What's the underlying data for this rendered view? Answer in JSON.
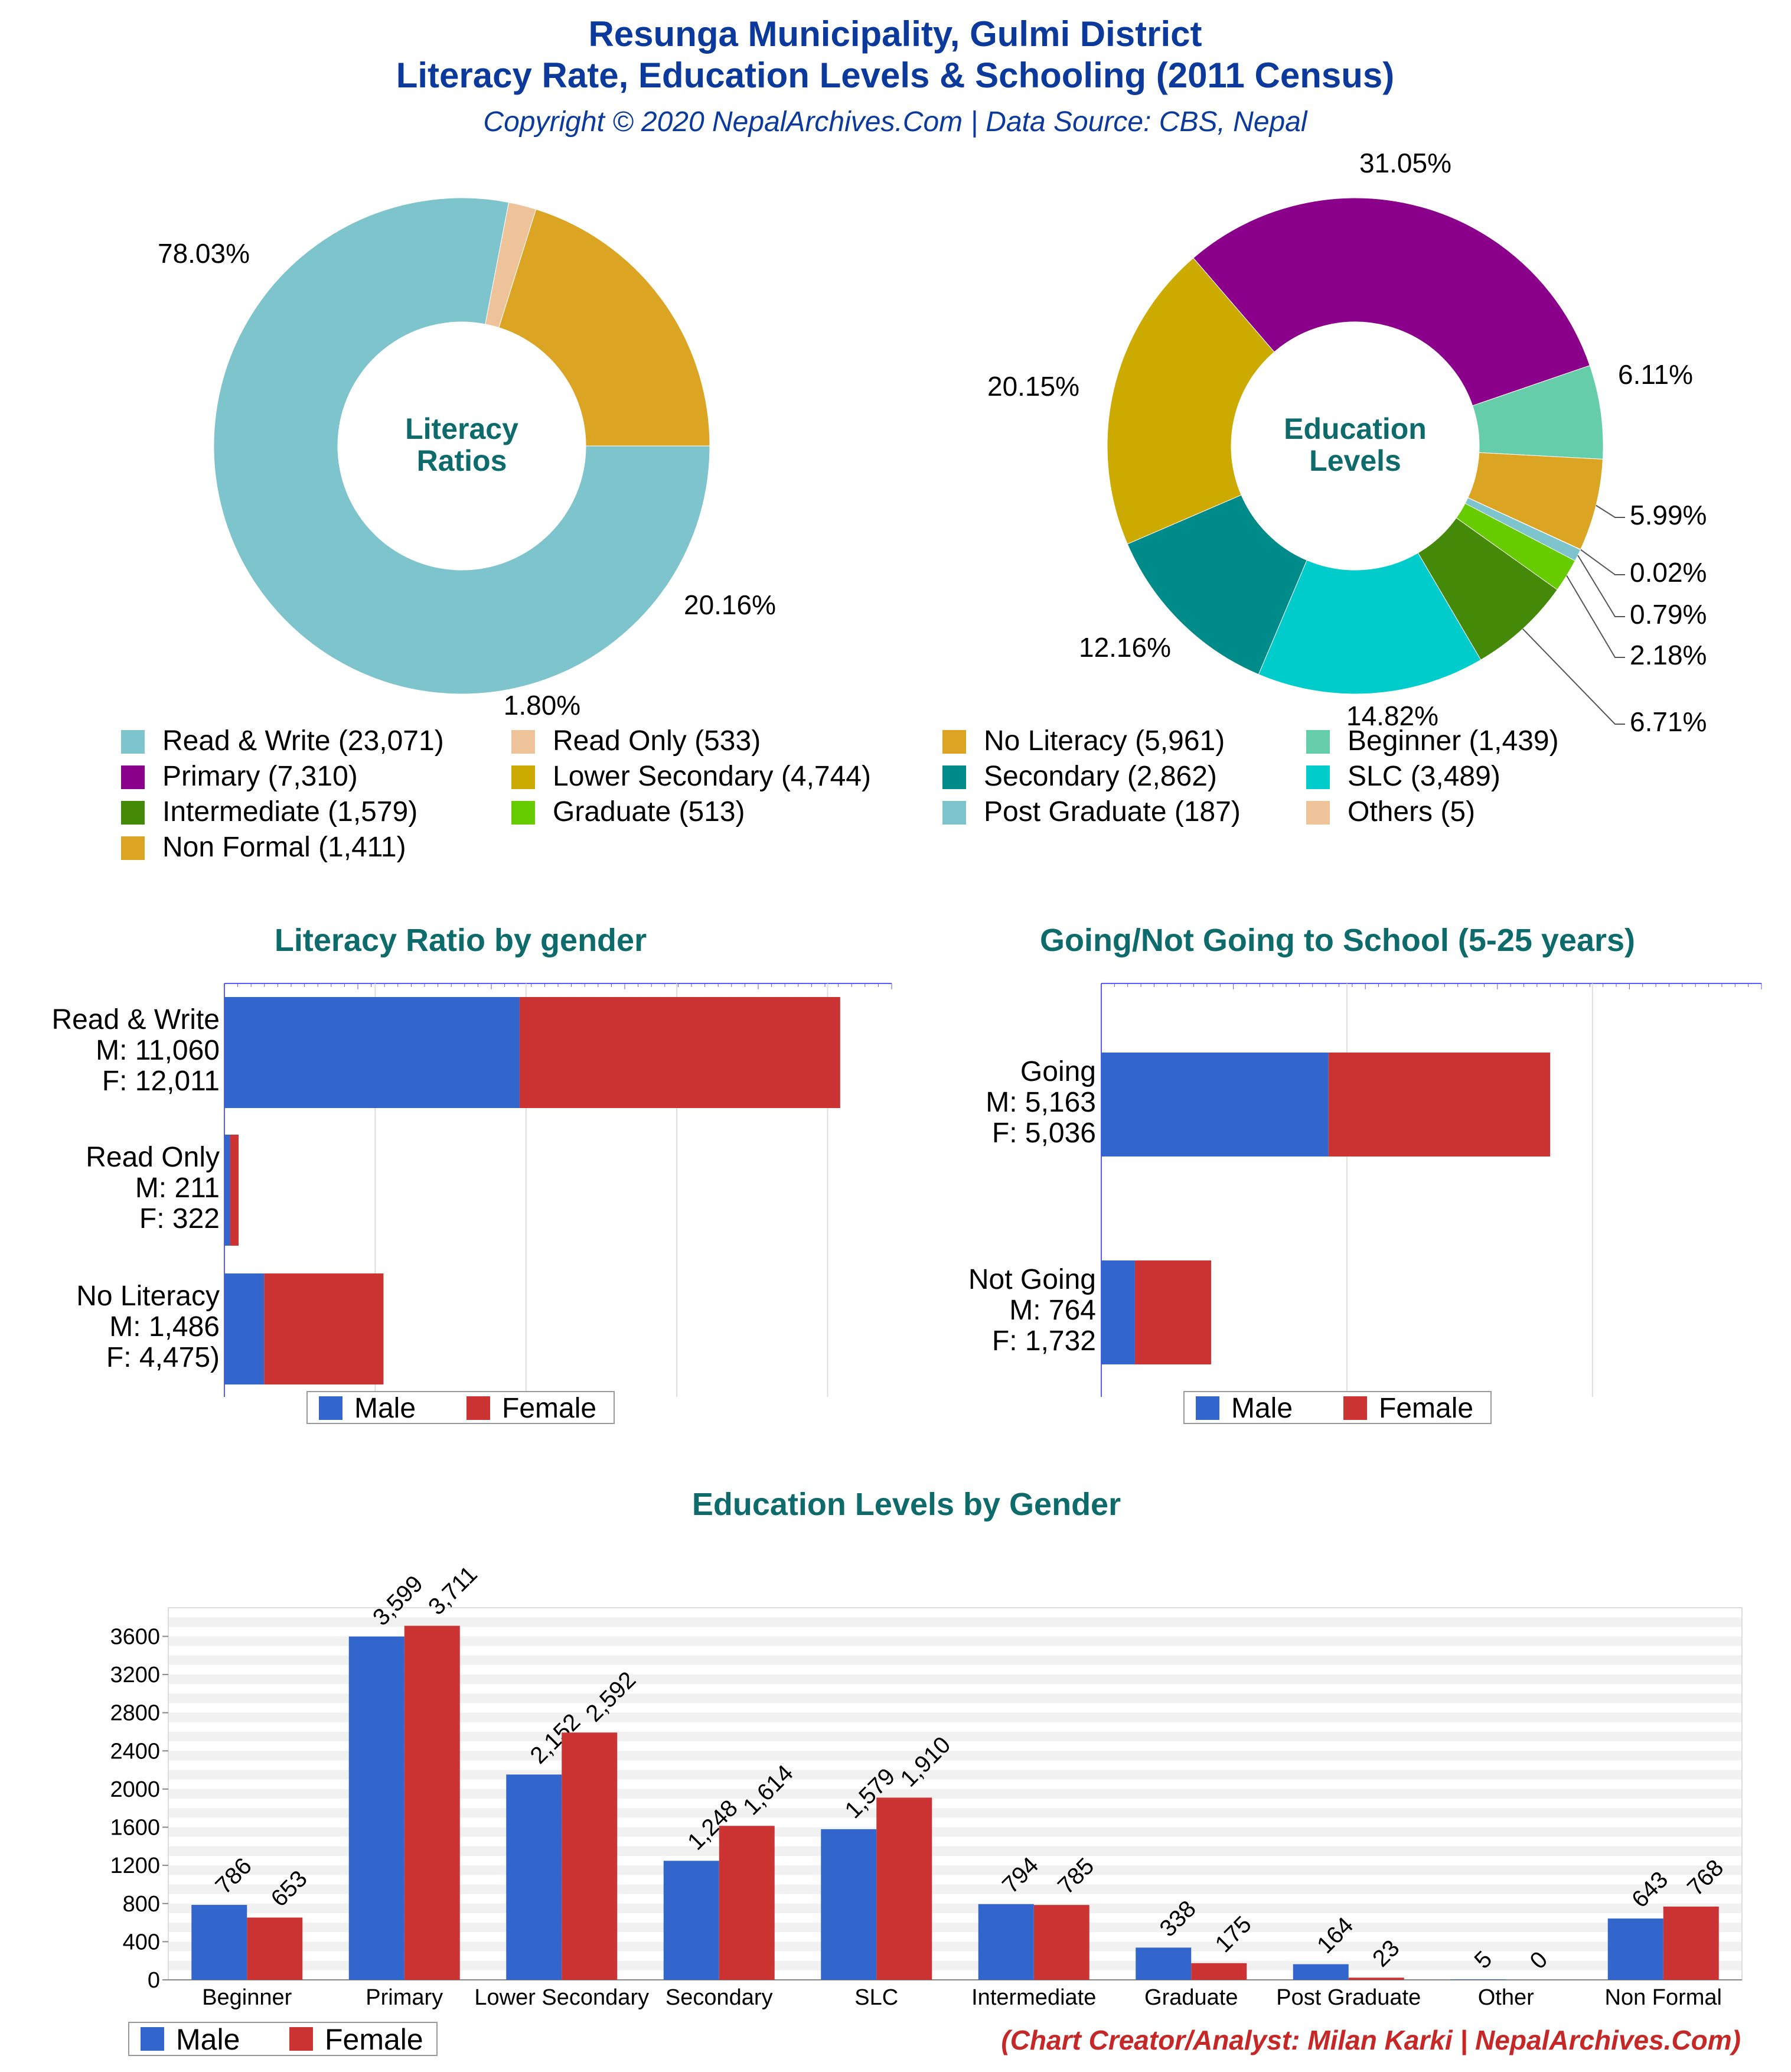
{
  "header": {
    "title_line1": "Resunga Municipality, Gulmi District",
    "title_line2": "Literacy Rate, Education Levels & Schooling (2011 Census)",
    "copyright": "Copyright © 2020 NepalArchives.Com | Data Source: CBS, Nepal",
    "credit": "(Chart Creator/Analyst: Milan Karki | NepalArchives.Com)"
  },
  "colors": {
    "title": "#0b3a9c",
    "chart_title": "#0e6b6b",
    "credit": "#c62828",
    "male": "#3366cc",
    "female": "#cc3333"
  },
  "legend_common": {
    "male": "Male",
    "female": "Female"
  },
  "chart_data": [
    {
      "id": "literacy-donut",
      "type": "pie",
      "center_label": [
        "Literacy",
        "Ratios"
      ],
      "slices": [
        {
          "label": "Read & Write",
          "value": 23071,
          "legend": "Read & Write (23,071)",
          "pct_label": "78.03%",
          "color": "#7ec4cc"
        },
        {
          "label": "Read Only",
          "value": 533,
          "legend": "Read Only (533)",
          "pct_label": "1.80%",
          "color": "#efc39a"
        },
        {
          "label": "No Literacy",
          "value": 5961,
          "legend": "No Literacy (5,961)",
          "pct_label": "20.16%",
          "color": "#dba523"
        }
      ]
    },
    {
      "id": "education-donut",
      "type": "pie",
      "center_label": [
        "Education",
        "Levels"
      ],
      "slices": [
        {
          "label": "Beginner",
          "value": 1439,
          "legend": "Beginner (1,439)",
          "pct_label": "6.11%",
          "color": "#66cdaa"
        },
        {
          "label": "Non Formal",
          "value": 1411,
          "legend": "Non Formal (1,411)",
          "pct_label": "5.99%",
          "color": "#dba523"
        },
        {
          "label": "Others",
          "value": 5,
          "legend": "Others (5)",
          "pct_label": "0.02%",
          "color": "#efc39a"
        },
        {
          "label": "Post Graduate",
          "value": 187,
          "legend": "Post Graduate (187)",
          "pct_label": "0.79%",
          "color": "#7ec4cc"
        },
        {
          "label": "Graduate",
          "value": 513,
          "legend": "Graduate (513)",
          "pct_label": "2.18%",
          "color": "#66cc00"
        },
        {
          "label": "Intermediate",
          "value": 1579,
          "legend": "Intermediate (1,579)",
          "pct_label": "6.71%",
          "color": "#448a08"
        },
        {
          "label": "SLC",
          "value": 3489,
          "legend": "SLC (3,489)",
          "pct_label": "14.82%",
          "color": "#00cccc"
        },
        {
          "label": "Secondary",
          "value": 2862,
          "legend": "Secondary (2,862)",
          "pct_label": "12.16%",
          "color": "#008b8b"
        },
        {
          "label": "Lower Secondary",
          "value": 4744,
          "legend": "Lower Secondary (4,744)",
          "pct_label": "20.15%",
          "color": "#ccaa00"
        },
        {
          "label": "Primary",
          "value": 7310,
          "legend": "Primary (7,310)",
          "pct_label": "31.05%",
          "color": "#8b008b"
        }
      ]
    },
    {
      "id": "literacy-gender",
      "type": "bar",
      "orientation": "horizontal",
      "stacked": true,
      "title": "Literacy Ratio by gender",
      "categories": [
        "Read & Write",
        "Read Only",
        "No Literacy"
      ],
      "category_labels": [
        [
          "Read & Write",
          "M: 11,060",
          "F: 12,011"
        ],
        [
          "Read Only",
          "M: 211",
          "F: 322"
        ],
        [
          "No Literacy",
          "M: 1,486",
          "F: 4,475)"
        ]
      ],
      "series": [
        {
          "name": "Male",
          "values": [
            11060,
            211,
            1486
          ]
        },
        {
          "name": "Female",
          "values": [
            12011,
            322,
            4475
          ]
        }
      ],
      "xlim": [
        0,
        25000
      ],
      "grid": true,
      "legend": "bottom"
    },
    {
      "id": "school-gender",
      "type": "bar",
      "orientation": "horizontal",
      "stacked": true,
      "title": "Going/Not Going to School (5-25 years)",
      "categories": [
        "Going",
        "Not Going"
      ],
      "category_labels": [
        [
          "Going",
          "M: 5,163",
          "F: 5,036"
        ],
        [
          "Not Going",
          "M: 764",
          "F: 1,732"
        ]
      ],
      "series": [
        {
          "name": "Male",
          "values": [
            5163,
            764
          ]
        },
        {
          "name": "Female",
          "values": [
            5036,
            1732
          ]
        }
      ],
      "xlim": [
        0,
        15000
      ],
      "grid": true,
      "legend": "bottom"
    },
    {
      "id": "education-gender",
      "type": "bar",
      "title": "Education Levels by Gender",
      "categories": [
        "Beginner",
        "Primary",
        "Lower Secondary",
        "Secondary",
        "SLC",
        "Intermediate",
        "Graduate",
        "Post Graduate",
        "Other",
        "Non Formal"
      ],
      "series": [
        {
          "name": "Male",
          "values": [
            786,
            3599,
            2152,
            1248,
            1579,
            794,
            338,
            164,
            5,
            643
          ],
          "labels": [
            "786",
            "3,599",
            "2,152",
            "1,248",
            "1,579",
            "794",
            "338",
            "164",
            "5",
            "643"
          ]
        },
        {
          "name": "Female",
          "values": [
            653,
            3711,
            2592,
            1614,
            1910,
            785,
            175,
            23,
            0,
            768
          ],
          "labels": [
            "653",
            "3,711",
            "2,592",
            "1,614",
            "1,910",
            "785",
            "175",
            "23",
            "0",
            "768"
          ]
        }
      ],
      "ylim": [
        0,
        3900
      ],
      "yticks": [
        0,
        400,
        800,
        1200,
        1600,
        2000,
        2400,
        2800,
        3200,
        3600
      ],
      "grid": true,
      "legend": "bottom-left"
    }
  ],
  "legend_items": [
    {
      "text": "Read & Write (23,071)",
      "color": "#7ec4cc"
    },
    {
      "text": "Read Only (533)",
      "color": "#efc39a"
    },
    {
      "text": "No Literacy (5,961)",
      "color": "#dba523"
    },
    {
      "text": "Beginner (1,439)",
      "color": "#66cdaa"
    },
    {
      "text": "Primary (7,310)",
      "color": "#8b008b"
    },
    {
      "text": "Lower Secondary (4,744)",
      "color": "#ccaa00"
    },
    {
      "text": "Secondary (2,862)",
      "color": "#008b8b"
    },
    {
      "text": "SLC (3,489)",
      "color": "#00cccc"
    },
    {
      "text": "Intermediate (1,579)",
      "color": "#448a08"
    },
    {
      "text": "Graduate (513)",
      "color": "#66cc00"
    },
    {
      "text": "Post Graduate (187)",
      "color": "#7ec4cc"
    },
    {
      "text": "Others (5)",
      "color": "#efc39a"
    },
    {
      "text": "Non Formal (1,411)",
      "color": "#dba523"
    }
  ]
}
